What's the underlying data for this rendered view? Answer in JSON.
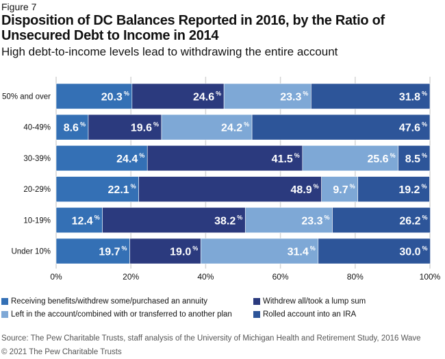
{
  "figure_label": "Figure 7",
  "chart_data": {
    "type": "bar",
    "orientation": "horizontal-stacked-100",
    "title": "Disposition of DC Balances Reported in 2016, by the Ratio of Unsecured Debt to Income in 2014",
    "subtitle": "High debt-to-income levels lead to withdrawing the entire account",
    "categories": [
      "50% and over",
      "40-49%",
      "30-39%",
      "20-29%",
      "10-19%",
      "Under 10%"
    ],
    "series": [
      {
        "name": "Receiving benefits/withdrew some/purchased an annuity",
        "color": "#3470b5",
        "values": [
          20.3,
          8.6,
          24.4,
          22.1,
          12.4,
          19.7
        ]
      },
      {
        "name": "Withdrew all/took a lump sum",
        "color": "#2b3a7e",
        "values": [
          24.6,
          19.6,
          41.5,
          48.9,
          38.2,
          19.0
        ]
      },
      {
        "name": "Left in the account/combined with or transferred to another plan",
        "color": "#7ea8d6",
        "values": [
          23.3,
          24.2,
          25.6,
          9.7,
          23.3,
          31.4
        ]
      },
      {
        "name": "Rolled account into an IRA",
        "color": "#2d5599",
        "values": [
          31.8,
          47.6,
          8.5,
          19.2,
          26.2,
          30.0
        ]
      }
    ],
    "xlim": [
      0,
      100
    ],
    "xticks": [
      "0%",
      "20%",
      "40%",
      "60%",
      "80%",
      "100%"
    ],
    "grid": true,
    "legend_placement": "bottom"
  },
  "source": "Source: The Pew Charitable Trusts, staff analysis of the University of Michigan Health and Retirement Study, 2016 Wave",
  "copyright": "© 2021 The Pew Charitable Trusts"
}
